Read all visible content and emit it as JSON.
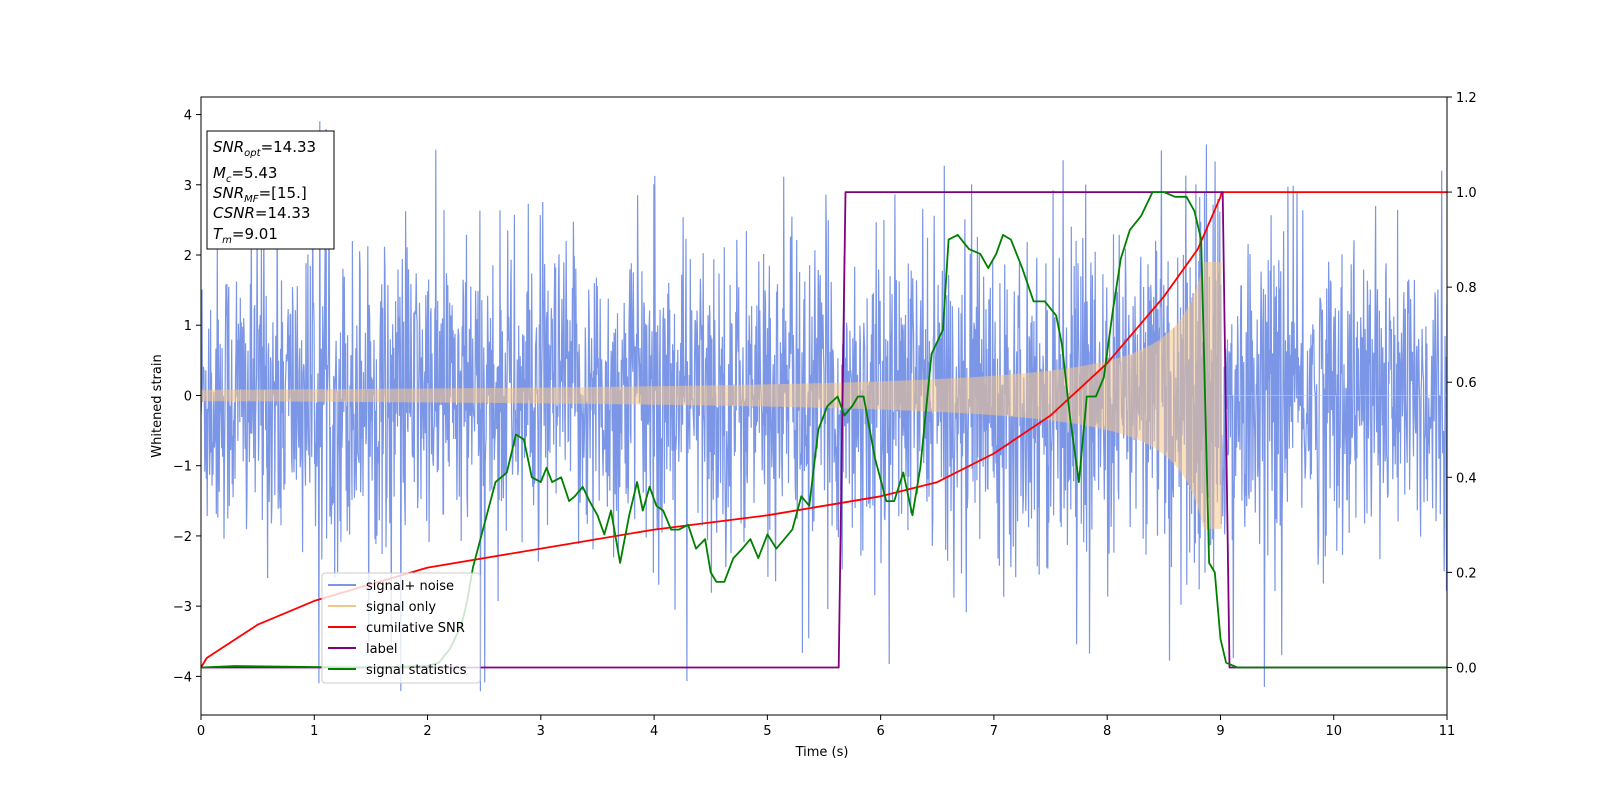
{
  "chart_data": {
    "type": "line",
    "xlabel": "Time (s)",
    "ylabel": "Whitened strain",
    "xlim": [
      0,
      11
    ],
    "ylim_left": [
      -4.55,
      4.25
    ],
    "ylim_right": [
      -0.1,
      1.2
    ],
    "x_ticks": [
      "0",
      "1",
      "2",
      "3",
      "4",
      "5",
      "6",
      "7",
      "8",
      "9",
      "10",
      "11"
    ],
    "y_left_ticks": [
      "4",
      "3",
      "2",
      "1",
      "0",
      "−1",
      "−2",
      "−3",
      "−4"
    ],
    "y_right_ticks": [
      "1.2",
      "1.0",
      "0.8",
      "0.6",
      "0.4",
      "0.2",
      "0.0"
    ],
    "legend_position": "lower-left",
    "annotation": {
      "snr_opt": {
        "main": "SNR",
        "sub": "opt",
        "value": "=14.33"
      },
      "mc": {
        "main": "M",
        "sub": "c",
        "value": "=5.43"
      },
      "snr_mf": {
        "main": "SNR",
        "sub": "MF",
        "value": "=[15.]"
      },
      "csnr": {
        "main": "CSNR",
        "value": "=14.33"
      },
      "tm": {
        "main": "T",
        "sub": "m",
        "value": "=9.01"
      }
    },
    "series": [
      {
        "name": "signal+ noise",
        "color": "#7b96e6",
        "axis": "left",
        "kind": "noise",
        "merger_time": 9.01
      },
      {
        "name": "signal only",
        "color": "#f5c68a",
        "axis": "left",
        "kind": "chirp",
        "merger_time": 9.01,
        "max_amplitude": 1.9
      },
      {
        "name": "cumilative SNR",
        "color": "#ff0000",
        "axis": "right",
        "x": [
          0,
          0.05,
          0.5,
          1,
          2,
          3,
          4,
          5,
          5.5,
          6,
          6.5,
          7,
          7.5,
          8,
          8.5,
          8.8,
          9.0,
          9.01,
          11
        ],
        "y": [
          0,
          0.02,
          0.09,
          0.14,
          0.21,
          0.25,
          0.29,
          0.32,
          0.34,
          0.36,
          0.39,
          0.45,
          0.53,
          0.64,
          0.78,
          0.88,
          0.99,
          1.0,
          1.0
        ]
      },
      {
        "name": "label",
        "color": "#800080",
        "axis": "right",
        "x": [
          0,
          5.63,
          5.69,
          9.02,
          9.08,
          11
        ],
        "y": [
          0,
          0,
          1,
          1,
          0,
          0
        ]
      },
      {
        "name": "signal statistics",
        "color": "#008000",
        "axis": "right",
        "x": [
          0,
          0.3,
          1,
          1.5,
          2,
          2.1,
          2.2,
          2.3,
          2.35,
          2.4,
          2.5,
          2.6,
          2.7,
          2.78,
          2.85,
          2.92,
          3.0,
          3.05,
          3.1,
          3.18,
          3.25,
          3.3,
          3.37,
          3.43,
          3.5,
          3.56,
          3.62,
          3.7,
          3.78,
          3.85,
          3.9,
          3.96,
          4.02,
          4.08,
          4.15,
          4.22,
          4.3,
          4.37,
          4.45,
          4.5,
          4.55,
          4.62,
          4.7,
          4.78,
          4.85,
          4.92,
          5.0,
          5.08,
          5.15,
          5.22,
          5.3,
          5.37,
          5.45,
          5.53,
          5.62,
          5.68,
          5.75,
          5.8,
          5.85,
          5.95,
          6.05,
          6.12,
          6.2,
          6.28,
          6.35,
          6.45,
          6.55,
          6.6,
          6.68,
          6.78,
          6.88,
          6.95,
          7.02,
          7.08,
          7.15,
          7.25,
          7.35,
          7.45,
          7.55,
          7.6,
          7.67,
          7.75,
          7.82,
          7.9,
          7.97,
          8.05,
          8.12,
          8.2,
          8.3,
          8.4,
          8.5,
          8.6,
          8.7,
          8.77,
          8.83,
          8.9,
          8.95,
          9.0,
          9.05,
          9.1,
          9.15,
          9.3,
          11
        ],
        "y": [
          0,
          0.003,
          0.001,
          0.0,
          0.003,
          0.01,
          0.04,
          0.09,
          0.14,
          0.21,
          0.3,
          0.39,
          0.41,
          0.49,
          0.48,
          0.4,
          0.39,
          0.42,
          0.39,
          0.4,
          0.35,
          0.36,
          0.38,
          0.35,
          0.32,
          0.28,
          0.33,
          0.22,
          0.32,
          0.39,
          0.33,
          0.38,
          0.34,
          0.33,
          0.29,
          0.29,
          0.3,
          0.25,
          0.27,
          0.2,
          0.18,
          0.18,
          0.23,
          0.25,
          0.27,
          0.23,
          0.28,
          0.25,
          0.27,
          0.29,
          0.36,
          0.34,
          0.5,
          0.55,
          0.57,
          0.53,
          0.55,
          0.57,
          0.57,
          0.44,
          0.35,
          0.35,
          0.41,
          0.32,
          0.42,
          0.66,
          0.71,
          0.9,
          0.91,
          0.88,
          0.87,
          0.84,
          0.87,
          0.91,
          0.9,
          0.84,
          0.77,
          0.77,
          0.74,
          0.68,
          0.53,
          0.39,
          0.57,
          0.57,
          0.61,
          0.75,
          0.86,
          0.92,
          0.95,
          1.0,
          1.0,
          0.99,
          0.99,
          0.96,
          0.9,
          0.22,
          0.2,
          0.06,
          0.01,
          0.005,
          0.0,
          0.0,
          0.0
        ]
      }
    ]
  }
}
